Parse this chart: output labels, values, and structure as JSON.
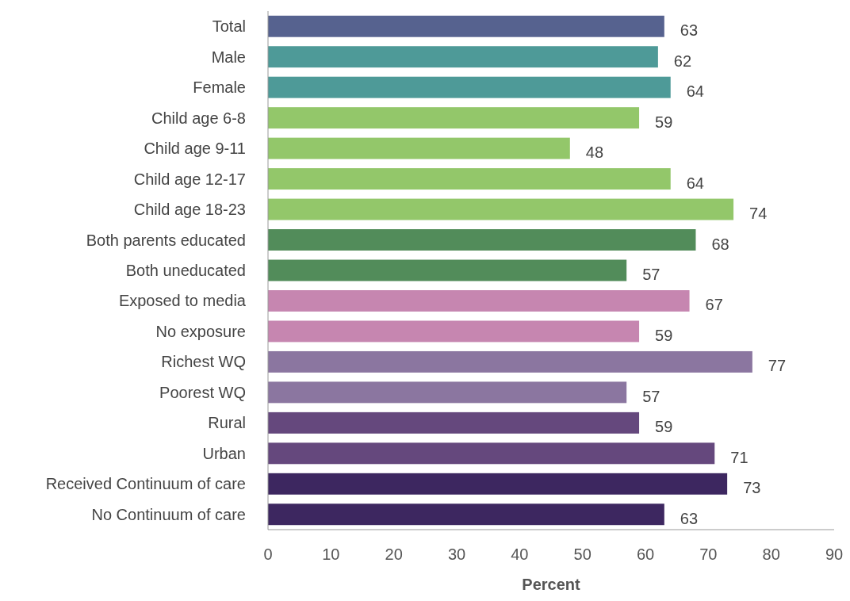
{
  "chart_data": {
    "type": "bar",
    "orientation": "horizontal",
    "xlabel": "Percent",
    "categories": [
      "Total",
      "Male",
      "Female",
      "Child age 6-8",
      "Child age 9-11",
      "Child age 12-17",
      "Child age 18-23",
      "Both parents educated",
      "Both uneducated",
      "Exposed to media",
      "No exposure",
      "Richest WQ",
      "Poorest WQ",
      "Rural",
      "Urban",
      "Received Continuum of care",
      "No Continuum of care"
    ],
    "values": [
      63,
      62,
      64,
      59,
      48,
      64,
      74,
      68,
      57,
      67,
      59,
      77,
      57,
      59,
      71,
      73,
      63
    ],
    "colors": [
      "#56628f",
      "#4e9a98",
      "#4e9a98",
      "#93c76a",
      "#93c76a",
      "#93c76a",
      "#93c76a",
      "#528c5a",
      "#528c5a",
      "#c686b0",
      "#c686b0",
      "#8b76a0",
      "#8b76a0",
      "#65487d",
      "#65487d",
      "#3d2760",
      "#3d2760"
    ],
    "xlim": [
      0,
      90
    ],
    "xticks": [
      0,
      10,
      20,
      30,
      40,
      50,
      60,
      70,
      80,
      90
    ],
    "data_labels": true,
    "grid": false
  }
}
